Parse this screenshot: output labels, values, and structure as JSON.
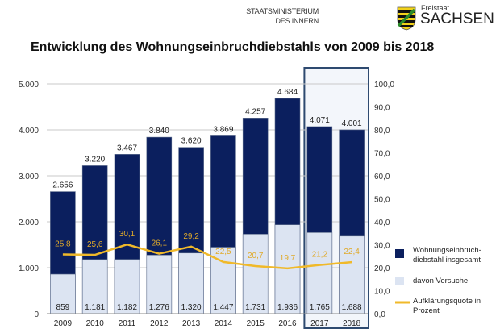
{
  "header": {
    "ministry_line1": "STAATSMINISTERIUM",
    "ministry_line2": "DES INNERN",
    "logo_small": "Freistaat",
    "logo_big": "SACHSEN"
  },
  "colors": {
    "total": "#0b1f5e",
    "attempts": "#dce4f2",
    "rate": "#f0b92a",
    "highlight": "#2e4a70"
  },
  "chart_data": {
    "type": "bar",
    "title": "Entwicklung des Wohnungseinbruchdiebstahls von 2009 bis 2018",
    "categories": [
      "2009",
      "2010",
      "2011",
      "2012",
      "2013",
      "2014",
      "2015",
      "2016",
      "2017",
      "2018"
    ],
    "series": [
      {
        "name": "Wohnungseinbruch-diebstahl insgesamt",
        "name_lines": [
          "Wohnungseinbruch-",
          "diebstahl insgesamt"
        ],
        "values": [
          2656,
          3220,
          3467,
          3840,
          3620,
          3869,
          4257,
          4684,
          4071,
          4001
        ],
        "labels": [
          "2.656",
          "3.220",
          "3.467",
          "3.840",
          "3.620",
          "3.869",
          "4.257",
          "4.684",
          "4.071",
          "4.001"
        ]
      },
      {
        "name": "davon Versuche",
        "values": [
          859,
          1181,
          1182,
          1276,
          1320,
          1447,
          1731,
          1936,
          1765,
          1688
        ],
        "labels": [
          "859",
          "1.181",
          "1.182",
          "1.276",
          "1.320",
          "1.447",
          "1.731",
          "1.936",
          "1.765",
          "1.688"
        ]
      },
      {
        "name": "Aufklärungsquote in Prozent",
        "name_lines": [
          "Aufklärungsquote in",
          "Prozent"
        ],
        "type": "line",
        "axis": "right",
        "values": [
          25.8,
          25.6,
          30.1,
          26.1,
          29.2,
          22.5,
          20.7,
          19.7,
          21.2,
          22.4
        ],
        "labels": [
          "25,8",
          "25,6",
          "30,1",
          "26,1",
          "29,2",
          "22,5",
          "20,7",
          "19,7",
          "21,2",
          "22,4"
        ]
      }
    ],
    "ylim": [
      0,
      5000
    ],
    "y_ticks": [
      "0",
      "1.000",
      "2.000",
      "3.000",
      "4.000",
      "5.000"
    ],
    "y2lim": [
      0,
      100
    ],
    "y2_ticks": [
      "0,0",
      "10,0",
      "20,0",
      "30,0",
      "40,0",
      "50,0",
      "60,0",
      "70,0",
      "80,0",
      "90,0",
      "100,0"
    ],
    "grid": true,
    "legend": "right",
    "highlighted_categories": [
      "2017",
      "2018"
    ]
  }
}
